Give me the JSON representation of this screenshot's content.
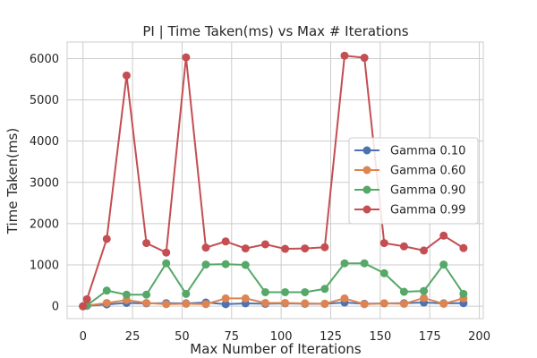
{
  "chart_data": {
    "type": "line",
    "title": "PI | Time Taken(ms) vs Max # Iterations",
    "xlabel": "Max Number of Iterations",
    "ylabel": "Time Taken(ms)",
    "xlim": [
      -8,
      202
    ],
    "ylim": [
      -300,
      6400
    ],
    "xticks": [
      0,
      25,
      50,
      75,
      100,
      125,
      150,
      175,
      200
    ],
    "yticks": [
      0,
      1000,
      2000,
      3000,
      4000,
      5000,
      6000
    ],
    "grid": true,
    "legend_position": "center-right",
    "x": [
      0,
      2,
      12,
      22,
      32,
      42,
      52,
      62,
      72,
      82,
      92,
      102,
      112,
      122,
      132,
      142,
      152,
      162,
      172,
      182,
      192
    ],
    "series": [
      {
        "name": "Gamma 0.10",
        "color": "#4c72b0",
        "values": [
          0,
          10,
          45,
          80,
          70,
          75,
          70,
          90,
          50,
          70,
          60,
          70,
          60,
          60,
          90,
          60,
          70,
          75,
          90,
          70,
          75
        ]
      },
      {
        "name": "Gamma 0.60",
        "color": "#dd8452",
        "values": [
          0,
          15,
          80,
          150,
          80,
          50,
          60,
          50,
          190,
          190,
          80,
          80,
          70,
          60,
          190,
          50,
          70,
          60,
          200,
          60,
          190
        ]
      },
      {
        "name": "Gamma 0.90",
        "color": "#55a868",
        "values": [
          0,
          20,
          380,
          280,
          280,
          1040,
          300,
          1010,
          1020,
          1000,
          340,
          340,
          340,
          420,
          1040,
          1040,
          800,
          350,
          370,
          1010,
          300
        ]
      },
      {
        "name": "Gamma 0.99",
        "color": "#c44e52",
        "values": [
          0,
          170,
          1630,
          5590,
          1530,
          1300,
          6030,
          1420,
          1570,
          1400,
          1500,
          1390,
          1400,
          1430,
          6070,
          6020,
          1530,
          1450,
          1350,
          1710,
          1410
        ]
      }
    ]
  }
}
